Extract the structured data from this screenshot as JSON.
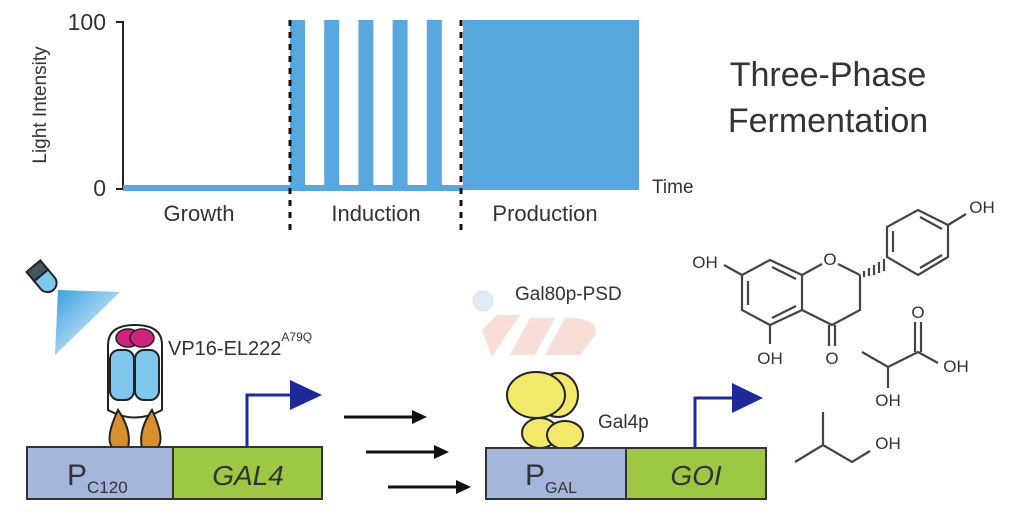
{
  "title": {
    "line1": "Three-Phase",
    "line2": "Fermentation"
  },
  "chart_data": {
    "type": "line",
    "ylabel": "Light Intensity",
    "xlabel": "Time",
    "yticks": [
      "0",
      "100"
    ],
    "ylim": [
      0,
      100
    ],
    "phases": [
      {
        "name": "Growth",
        "light": "0 (off)"
      },
      {
        "name": "Induction",
        "light": "pulsed 0/100",
        "pulses": 5
      },
      {
        "name": "Production",
        "light": "100 (constant)"
      }
    ],
    "colors": {
      "light": "#56a8de",
      "axis": "#222222"
    }
  },
  "circuit1": {
    "protein_label": "VP16-EL222",
    "protein_superscript": "A79Q",
    "promoter": "P",
    "promoter_sub": "C120",
    "gene": "GAL4"
  },
  "circuit2": {
    "repressor_label": "Gal80p-PSD",
    "activator_label": "Gal4p",
    "promoter": "P",
    "promoter_sub": "GAL",
    "gene": "GOI"
  },
  "chemicals": {
    "naringenin": {
      "oh1": "OH",
      "oh2": "OH",
      "oh3": "OH",
      "o_ring": "O",
      "o_keto": "O"
    },
    "lactic_acid": {
      "o": "O",
      "oh1": "OH",
      "oh2": "OH"
    },
    "isobutanol": {
      "oh": "OH"
    }
  },
  "colors": {
    "promoter": "#a4b6dc",
    "gene": "#9ec843",
    "promoter_arrow": "#1f2a9a",
    "gal4p": "#f2e96a",
    "el222": "#7fc7ec",
    "vp16": "#d0237e",
    "feet": "#d8902c"
  }
}
